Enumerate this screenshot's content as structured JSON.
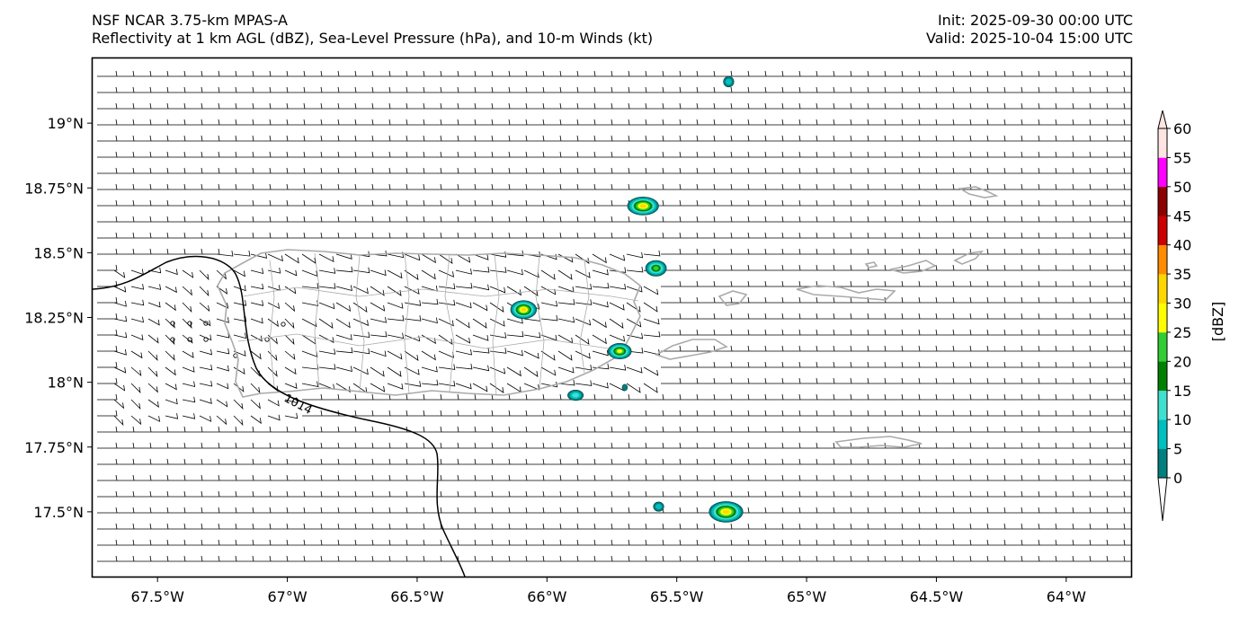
{
  "header": {
    "model": "NSF NCAR 3.75-km MPAS-A",
    "fields": "Reflectivity at 1 km AGL (dBZ), Sea-Level Pressure (hPa), and 10-m Winds (kt)",
    "init": "Init: 2025-09-30 00:00 UTC",
    "valid": "Valid: 2025-10-04 15:00 UTC"
  },
  "map": {
    "lon_range": [
      -67.75,
      -63.75
    ],
    "lat_range": [
      17.25,
      19.25
    ],
    "lon_ticks": [
      {
        "value": -67.5,
        "label": "67.5°W"
      },
      {
        "value": -67.0,
        "label": "67°W"
      },
      {
        "value": -66.5,
        "label": "66.5°W"
      },
      {
        "value": -66.0,
        "label": "66°W"
      },
      {
        "value": -65.5,
        "label": "65.5°W"
      },
      {
        "value": -65.0,
        "label": "65°W"
      },
      {
        "value": -64.5,
        "label": "64.5°W"
      },
      {
        "value": -64.0,
        "label": "64°W"
      }
    ],
    "lat_ticks": [
      {
        "value": 19.0,
        "label": "19°N"
      },
      {
        "value": 18.75,
        "label": "18.75°N"
      },
      {
        "value": 18.5,
        "label": "18.5°N"
      },
      {
        "value": 18.25,
        "label": "18.25°N"
      },
      {
        "value": 18.0,
        "label": "18°N"
      },
      {
        "value": 17.75,
        "label": "17.75°N"
      },
      {
        "value": 17.5,
        "label": "17.5°N"
      }
    ],
    "isobar_label": "1014",
    "coastline_color": "#aaaaaa",
    "isobar_color": "#000000",
    "wind_barb_color": "#000000",
    "echoes": [
      {
        "lon": -65.63,
        "lat": 18.68,
        "rx_deg": 0.06,
        "ry_deg": 0.035,
        "max_dbz": 35
      },
      {
        "lon": -65.58,
        "lat": 18.44,
        "rx_deg": 0.04,
        "ry_deg": 0.03,
        "max_dbz": 25
      },
      {
        "lon": -66.09,
        "lat": 18.28,
        "rx_deg": 0.05,
        "ry_deg": 0.035,
        "max_dbz": 35
      },
      {
        "lon": -65.72,
        "lat": 18.12,
        "rx_deg": 0.045,
        "ry_deg": 0.03,
        "max_dbz": 30
      },
      {
        "lon": -65.89,
        "lat": 17.95,
        "rx_deg": 0.03,
        "ry_deg": 0.02,
        "max_dbz": 15
      },
      {
        "lon": -65.31,
        "lat": 17.5,
        "rx_deg": 0.065,
        "ry_deg": 0.04,
        "max_dbz": 35
      },
      {
        "lon": -65.57,
        "lat": 17.52,
        "rx_deg": 0.02,
        "ry_deg": 0.018,
        "max_dbz": 10
      },
      {
        "lon": -65.3,
        "lat": 19.16,
        "rx_deg": 0.02,
        "ry_deg": 0.02,
        "max_dbz": 10
      },
      {
        "lon": -65.7,
        "lat": 17.98,
        "rx_deg": 0.01,
        "ry_deg": 0.012,
        "max_dbz": 5
      }
    ]
  },
  "colorbar": {
    "label": "[dBZ]",
    "ticks": [
      "0",
      "5",
      "10",
      "15",
      "20",
      "25",
      "30",
      "35",
      "40",
      "45",
      "50",
      "55",
      "60"
    ],
    "colors": [
      "#007f7f",
      "#00bfbf",
      "#40e0d0",
      "#008000",
      "#32cd32",
      "#ffff00",
      "#ffd700",
      "#ff8c00",
      "#cc0000",
      "#8b0000",
      "#ff00ff",
      "#ffe4e1"
    ]
  }
}
